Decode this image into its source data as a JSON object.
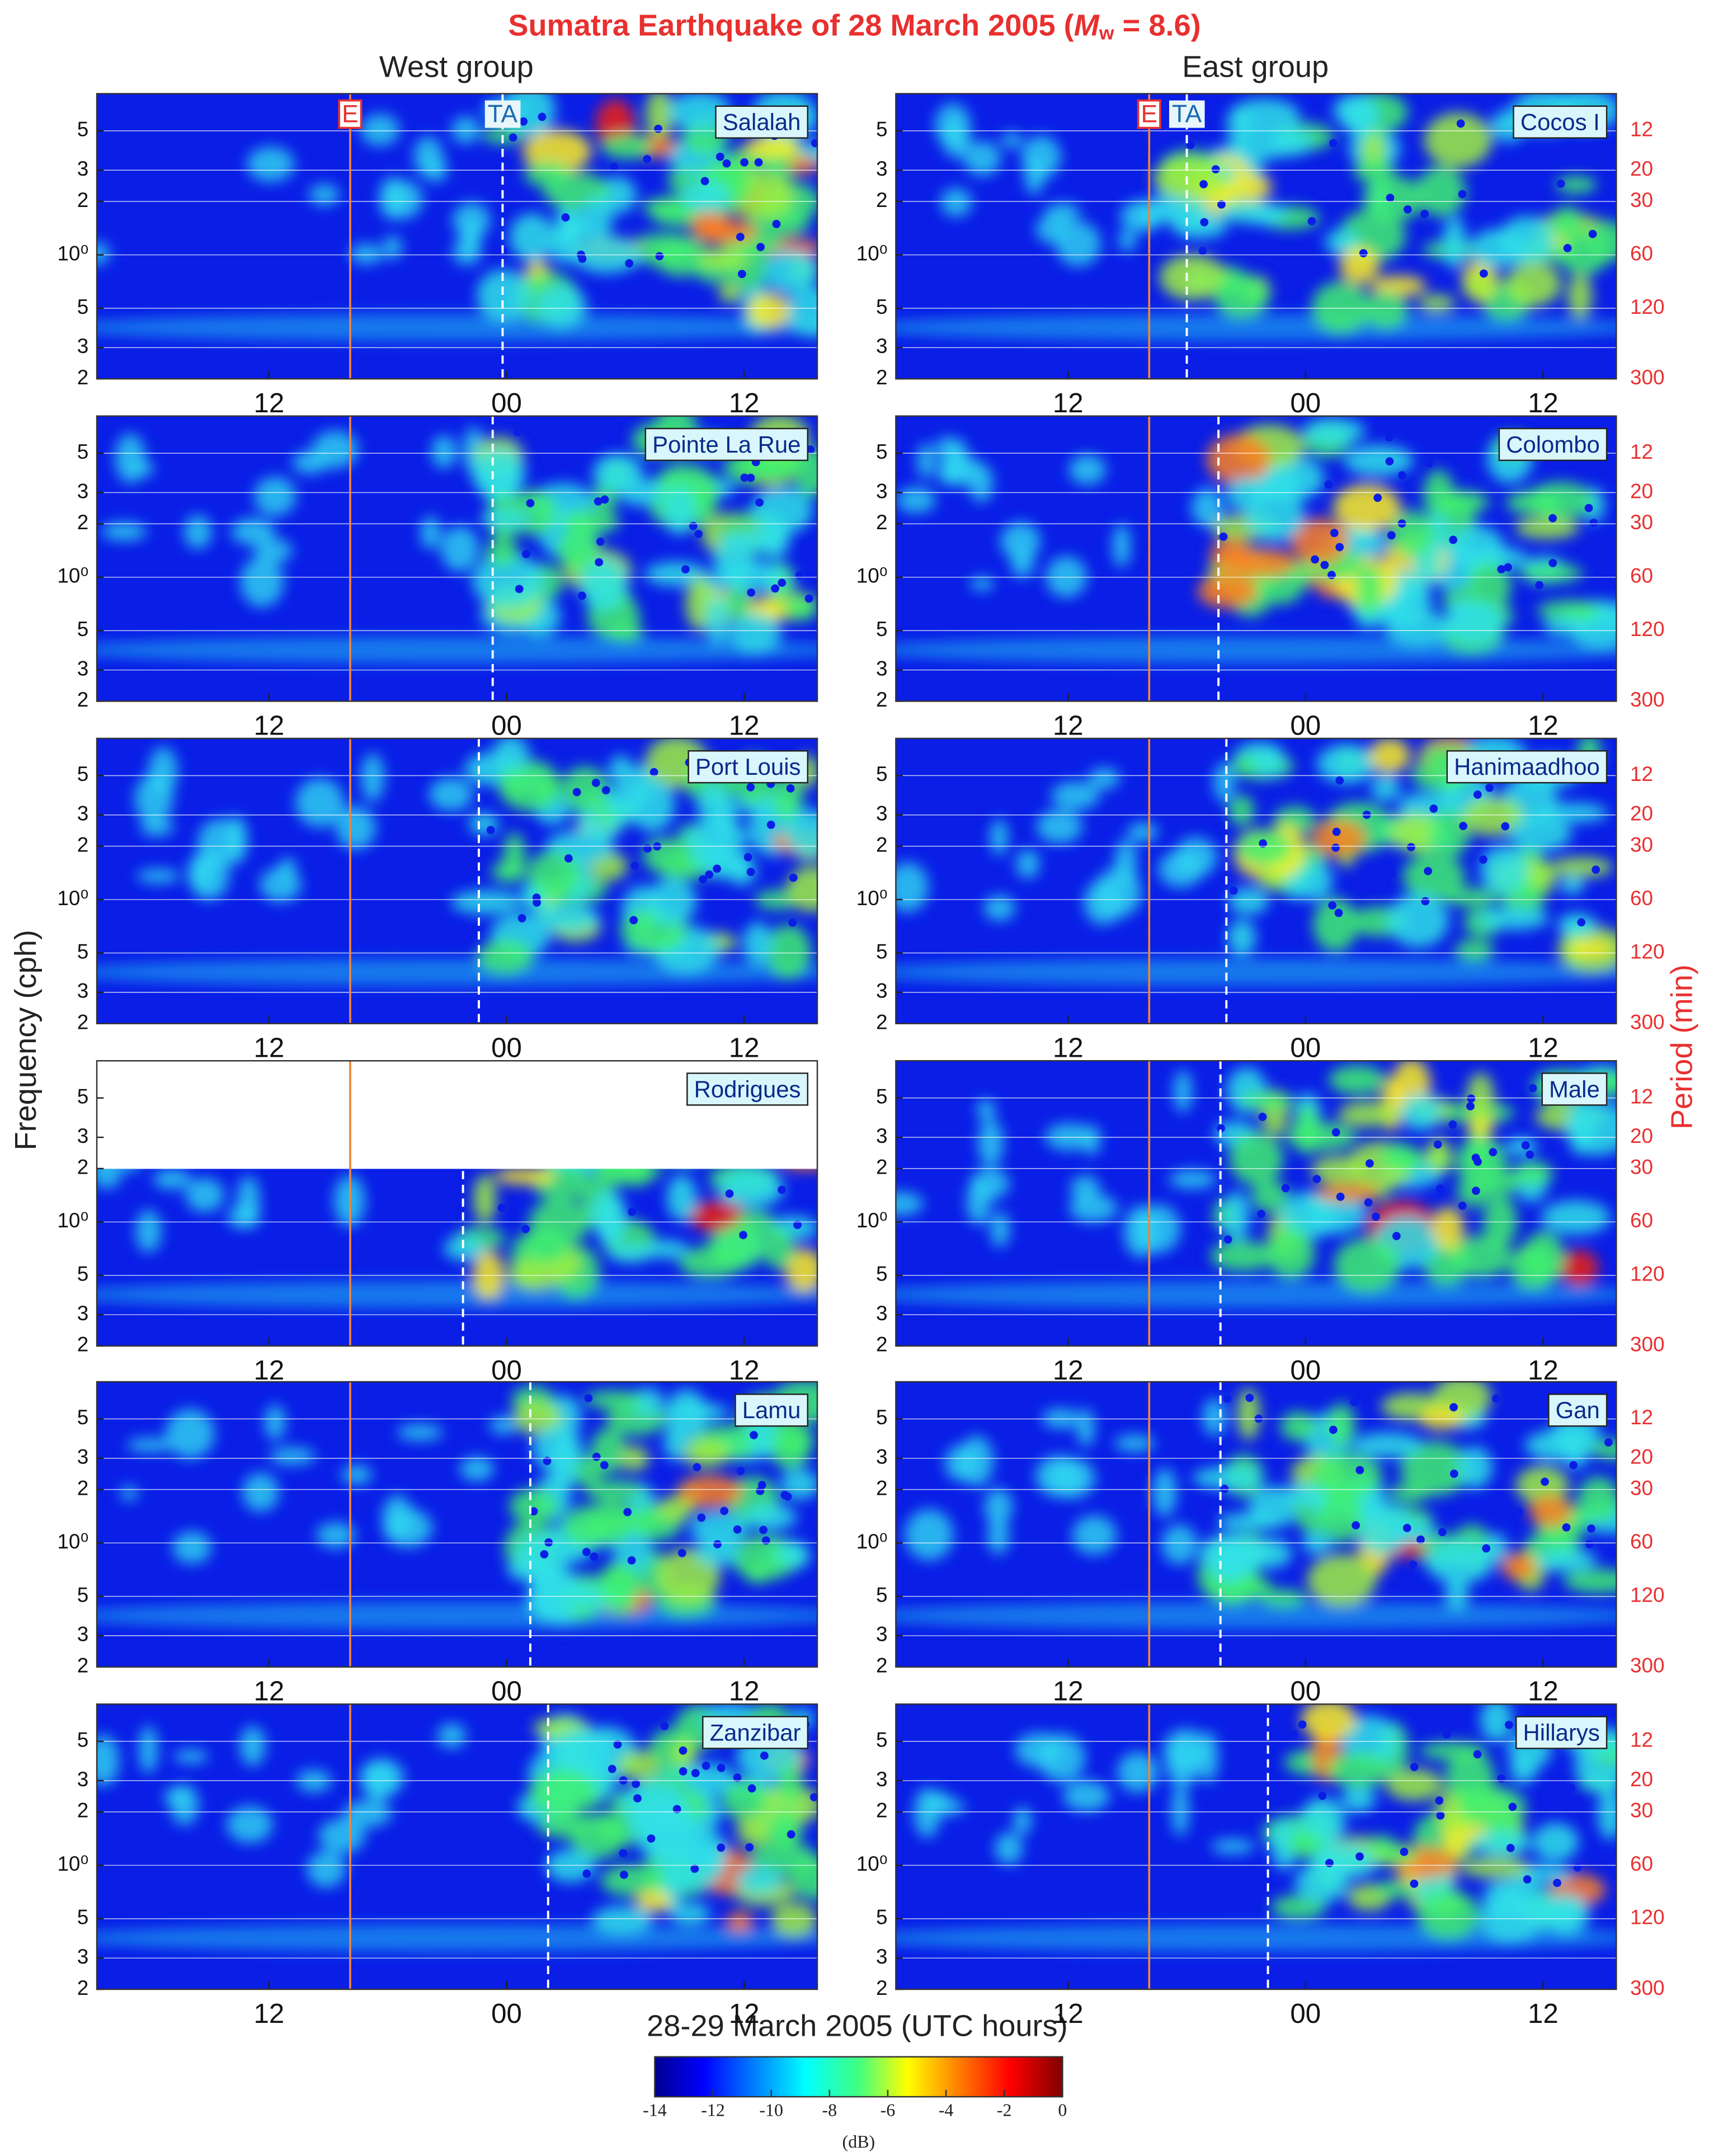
{
  "chart_data": {
    "type": "spectrogram",
    "title_parts": [
      "Sumatra  Earthquake of 28 March 2005  (",
      "M",
      "w",
      " = 8.6)"
    ],
    "groups": [
      "West group",
      "East group"
    ],
    "xlabel": "28-29 March 2005 (UTC hours)",
    "ylabel": "Frequency  (cph)",
    "y2label": "Period  (min)",
    "xlim": [
      3.3,
      39.7
    ],
    "xticks": [
      {
        "value": 12,
        "label": "12"
      },
      {
        "value": 24,
        "label": "00"
      },
      {
        "value": 36,
        "label": "12"
      }
    ],
    "ylim": [
      0.2,
      8.1
    ],
    "log_y": true,
    "yticks": [
      5,
      3,
      2,
      {
        "value": 1,
        "label": "10⁰"
      },
      {
        "value": 0.5,
        "label": "5"
      },
      {
        "value": 0.3,
        "label": "3"
      },
      {
        "value": 0.2,
        "label": "2"
      }
    ],
    "y2_scale": "period",
    "y2ticks": [
      12,
      20,
      30,
      60,
      120,
      300
    ],
    "grid": true,
    "event_time": 16.1,
    "event_label": "E",
    "arrival_label": "TA",
    "panels": [
      {
        "name": "Salalah",
        "group": 0,
        "arrival": 23.8
      },
      {
        "name": "Cocos I",
        "group": 1,
        "arrival": 18.0
      },
      {
        "name": "Pointe La Rue",
        "group": 0,
        "arrival": 23.3
      },
      {
        "name": "Colombo",
        "group": 1,
        "arrival": 19.6
      },
      {
        "name": "Port Louis",
        "group": 0,
        "arrival": 22.6
      },
      {
        "name": "Hanimaadhoo",
        "group": 1,
        "arrival": 20.0
      },
      {
        "name": "Rodrigues",
        "group": 0,
        "arrival": 21.8,
        "data_max_freq": 2
      },
      {
        "name": "Male",
        "group": 1,
        "arrival": 19.7
      },
      {
        "name": "Lamu",
        "group": 0,
        "arrival": 25.2
      },
      {
        "name": "Gan",
        "group": 1,
        "arrival": 19.7
      },
      {
        "name": "Zanzibar",
        "group": 0,
        "arrival": 26.1
      },
      {
        "name": "Hillarys",
        "group": 1,
        "arrival": 22.1
      }
    ],
    "colorbar": {
      "lim": [
        -14,
        0
      ],
      "ticks": [
        -14,
        -12,
        -10,
        -8,
        -6,
        -4,
        -2,
        0
      ],
      "label": "(dB)"
    }
  }
}
